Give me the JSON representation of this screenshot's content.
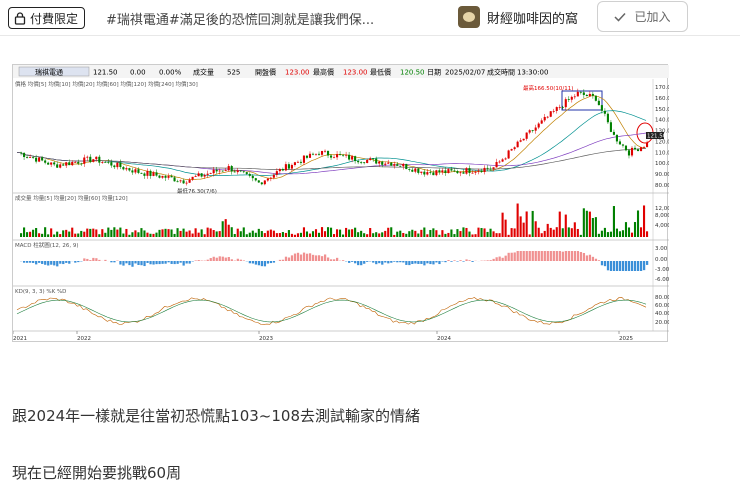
{
  "header": {
    "pay_badge": "付費限定",
    "post_title": "#瑞祺電通#滿足後的恐慌回測就是讓我們保...",
    "author_name": "財經咖啡因的窩",
    "joined_label": "已加入"
  },
  "chart_image": {
    "stock_name": "瑞祺電通",
    "price": "121.50",
    "change": "0.00",
    "change_pct": "0.00%",
    "volume_label": "成交量",
    "volume": "525",
    "open_label": "開盤價",
    "open": "123.00",
    "high_label": "最高價",
    "high": "123.00",
    "low_label": "最低價",
    "low": "120.50",
    "date_label": "日期",
    "date": "2025/02/07",
    "time_label": "成交時間",
    "time": "13:30:00",
    "price_legend": "價格 均價[5] 均價[10] 均價[20] 均價[60] 均價[120] 均價[240] 均價[30]",
    "volume_legend": "成交量 均量[5] 均量[20] 均量[60] 均量[120]",
    "macd_legend": "MACD 柱狀圖(12, 26, 9)",
    "kd_legend": "KD(9, 3, 3) %K %D",
    "high_annotation": "最高166.50(10/11)",
    "low_annotation": "最低76.30(7/6)",
    "current_price_tag": "121.50",
    "price_axis": [
      "170.00",
      "160.00",
      "150.00",
      "140.00",
      "130.00",
      "120.00",
      "110.00",
      "100.00",
      "90.00",
      "80.00"
    ],
    "volume_axis": [
      "12,000",
      "8,000",
      "4,000"
    ],
    "macd_axis": [
      "3.00",
      "0.00",
      "-3.00",
      "-6.00"
    ],
    "kd_axis": [
      "80.00",
      "60.00",
      "40.00",
      "20.00"
    ],
    "years": [
      "2021",
      "2022",
      "2023",
      "2024",
      "2025"
    ],
    "colors": {
      "up": "#e00000",
      "down": "#008000",
      "macd_pos": "#f09090",
      "macd_neg": "#3a8fd8"
    }
  },
  "body": {
    "paragraph_1": "跟2024年一樣就是往當初恐慌點103~108去測試輸家的情緒",
    "paragraph_2": "現在已經開始要挑戰60周"
  }
}
